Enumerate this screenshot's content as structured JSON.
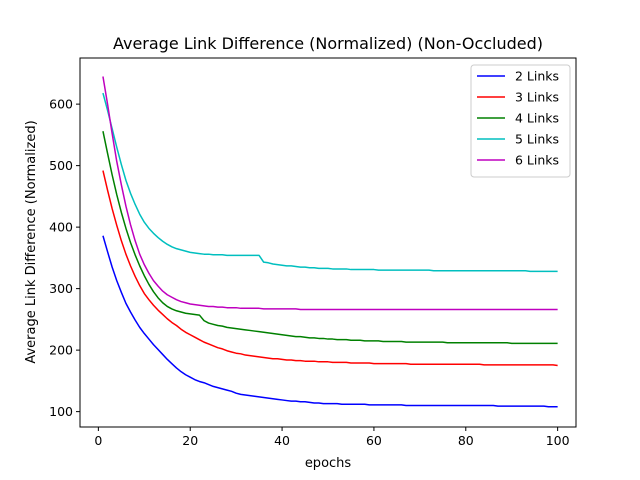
{
  "chart_data": {
    "type": "line",
    "title": "Average Link Difference (Normalized) (Non-Occluded)",
    "xlabel": "epochs",
    "ylabel": "Average Link Difference (Normalized)",
    "xlim": [
      -4,
      104
    ],
    "ylim": [
      75,
      675
    ],
    "xticks": [
      0,
      20,
      40,
      60,
      80,
      100
    ],
    "yticks": [
      100,
      200,
      300,
      400,
      500,
      600
    ],
    "legend_position": "upper right",
    "grid": false,
    "x": [
      1,
      2,
      3,
      4,
      5,
      6,
      7,
      8,
      9,
      10,
      11,
      12,
      13,
      14,
      15,
      16,
      17,
      18,
      19,
      20,
      21,
      22,
      23,
      24,
      25,
      26,
      27,
      28,
      29,
      30,
      31,
      32,
      33,
      34,
      35,
      36,
      37,
      38,
      39,
      40,
      41,
      42,
      43,
      44,
      45,
      46,
      47,
      48,
      49,
      50,
      51,
      52,
      53,
      54,
      55,
      56,
      57,
      58,
      59,
      60,
      61,
      62,
      63,
      64,
      65,
      66,
      67,
      68,
      69,
      70,
      71,
      72,
      73,
      74,
      75,
      76,
      77,
      78,
      79,
      80,
      81,
      82,
      83,
      84,
      85,
      86,
      87,
      88,
      89,
      90,
      91,
      92,
      93,
      94,
      95,
      96,
      97,
      98,
      99,
      100
    ],
    "series": [
      {
        "name": "2 Links",
        "color": "#0000ff",
        "values": [
          386,
          360,
          335,
          313,
          294,
          276,
          262,
          249,
          237,
          227,
          218,
          209,
          201,
          193,
          185,
          178,
          171,
          165,
          160,
          156,
          152,
          149,
          147,
          144,
          141,
          139,
          137,
          135,
          133,
          130,
          128,
          127,
          126,
          125,
          124,
          123,
          122,
          121,
          120,
          119,
          118,
          117,
          117,
          116,
          116,
          115,
          114,
          114,
          113,
          113,
          113,
          113,
          112,
          112,
          112,
          112,
          112,
          112,
          111,
          111,
          111,
          111,
          111,
          111,
          111,
          111,
          110,
          110,
          110,
          110,
          110,
          110,
          110,
          110,
          110,
          110,
          110,
          110,
          110,
          110,
          110,
          110,
          110,
          110,
          110,
          110,
          109,
          109,
          109,
          109,
          109,
          109,
          109,
          109,
          109,
          109,
          109,
          108,
          108,
          108
        ]
      },
      {
        "name": "3 Links",
        "color": "#ff0000",
        "values": [
          492,
          460,
          430,
          403,
          378,
          356,
          337,
          320,
          305,
          292,
          282,
          273,
          265,
          258,
          251,
          245,
          240,
          234,
          229,
          225,
          221,
          217,
          213,
          210,
          207,
          204,
          202,
          199,
          197,
          195,
          194,
          192,
          191,
          190,
          189,
          188,
          187,
          186,
          186,
          185,
          184,
          184,
          183,
          183,
          182,
          182,
          182,
          181,
          181,
          181,
          180,
          180,
          180,
          180,
          179,
          179,
          179,
          179,
          179,
          178,
          178,
          178,
          178,
          178,
          178,
          178,
          178,
          177,
          177,
          177,
          177,
          177,
          177,
          177,
          177,
          177,
          177,
          177,
          177,
          177,
          177,
          177,
          177,
          176,
          176,
          176,
          176,
          176,
          176,
          176,
          176,
          176,
          176,
          176,
          176,
          176,
          176,
          176,
          176,
          175
        ]
      },
      {
        "name": "4 Links",
        "color": "#008000",
        "values": [
          556,
          520,
          485,
          453,
          424,
          398,
          375,
          355,
          337,
          321,
          307,
          295,
          285,
          277,
          271,
          267,
          264,
          262,
          260,
          259,
          258,
          257,
          248,
          244,
          242,
          240,
          239,
          237,
          236,
          235,
          234,
          233,
          232,
          231,
          230,
          229,
          228,
          227,
          226,
          225,
          224,
          223,
          222,
          222,
          221,
          220,
          220,
          219,
          219,
          218,
          218,
          217,
          217,
          217,
          216,
          216,
          216,
          215,
          215,
          215,
          215,
          214,
          214,
          214,
          214,
          214,
          213,
          213,
          213,
          213,
          213,
          213,
          213,
          213,
          213,
          212,
          212,
          212,
          212,
          212,
          212,
          212,
          212,
          212,
          212,
          212,
          212,
          212,
          212,
          211,
          211,
          211,
          211,
          211,
          211,
          211,
          211,
          211,
          211,
          211
        ]
      },
      {
        "name": "5 Links",
        "color": "#00bfbf",
        "values": [
          618,
          590,
          560,
          530,
          502,
          476,
          455,
          437,
          421,
          408,
          398,
          390,
          383,
          377,
          372,
          368,
          365,
          363,
          361,
          359,
          358,
          357,
          356,
          356,
          355,
          355,
          355,
          354,
          354,
          354,
          354,
          354,
          354,
          354,
          354,
          343,
          342,
          340,
          339,
          338,
          337,
          337,
          336,
          335,
          335,
          334,
          334,
          333,
          333,
          333,
          332,
          332,
          332,
          332,
          331,
          331,
          331,
          331,
          331,
          331,
          330,
          330,
          330,
          330,
          330,
          330,
          330,
          330,
          330,
          330,
          330,
          330,
          329,
          329,
          329,
          329,
          329,
          329,
          329,
          329,
          329,
          329,
          329,
          329,
          329,
          329,
          329,
          329,
          329,
          329,
          329,
          329,
          329,
          328,
          328,
          328,
          328,
          328,
          328,
          328
        ]
      },
      {
        "name": "6 Links",
        "color": "#bf00bf",
        "values": [
          645,
          600,
          552,
          507,
          469,
          434,
          404,
          378,
          356,
          339,
          325,
          313,
          304,
          296,
          290,
          286,
          282,
          279,
          277,
          275,
          274,
          273,
          272,
          271,
          271,
          270,
          270,
          269,
          269,
          269,
          268,
          268,
          268,
          268,
          268,
          267,
          267,
          267,
          267,
          267,
          267,
          267,
          267,
          266,
          266,
          266,
          266,
          266,
          266,
          266,
          266,
          266,
          266,
          266,
          266,
          266,
          266,
          266,
          266,
          266,
          266,
          266,
          266,
          266,
          266,
          266,
          266,
          266,
          266,
          266,
          266,
          266,
          266,
          266,
          266,
          266,
          266,
          266,
          266,
          266,
          266,
          266,
          266,
          266,
          266,
          266,
          266,
          266,
          266,
          266,
          266,
          266,
          266,
          266,
          266,
          266,
          266,
          266,
          266,
          266
        ]
      }
    ]
  }
}
